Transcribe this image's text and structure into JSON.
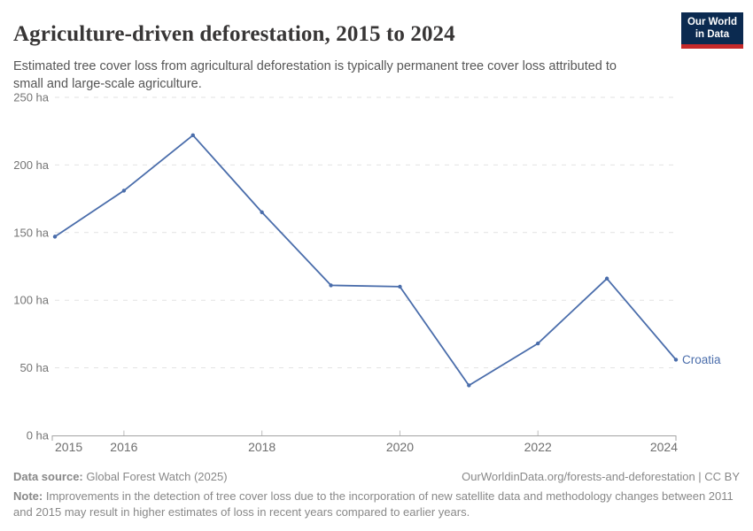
{
  "header": {
    "title": "Agriculture-driven deforestation, 2015 to 2024",
    "subtitle": "Estimated tree cover loss from agricultural deforestation is typically permanent tree cover loss attributed to small and large-scale agriculture.",
    "logo": {
      "line1": "Our World",
      "line2": "in Data"
    }
  },
  "chart_data": {
    "type": "line",
    "title": "Agriculture-driven deforestation, 2015 to 2024",
    "x": [
      2015,
      2016,
      2017,
      2018,
      2019,
      2020,
      2021,
      2022,
      2023,
      2024
    ],
    "series": [
      {
        "name": "Croatia",
        "values": [
          147,
          181,
          222,
          165,
          111,
          110,
          37,
          68,
          116,
          56
        ]
      }
    ],
    "unit": "ha",
    "ylabel": "",
    "xlabel": "",
    "ylim": [
      0,
      250
    ],
    "y_ticks": [
      0,
      50,
      100,
      150,
      200,
      250
    ],
    "y_tick_suffix": " ha",
    "x_ticks": [
      2015,
      2016,
      2018,
      2020,
      2022,
      2024
    ],
    "grid": "horizontal-dashed",
    "legend_position": "end-of-line"
  },
  "footer": {
    "source_label": "Data source:",
    "source_text": " Global Forest Watch (2025)",
    "link": "OurWorldinData.org/forests-and-deforestation | CC BY",
    "note_label": "Note:",
    "note_text": " Improvements in the detection of tree cover loss due to the incorporation of new satellite data and methodology changes between 2011 and 2015 may result in higher estimates of loss in recent years compared to earlier years."
  },
  "colors": {
    "line": "#4a6dab",
    "grid": "#e2e2e2",
    "axis": "#a3a3a3",
    "tick": "#bdbdbd",
    "logo_navy": "#0b2a50",
    "logo_red": "#c5292a"
  }
}
